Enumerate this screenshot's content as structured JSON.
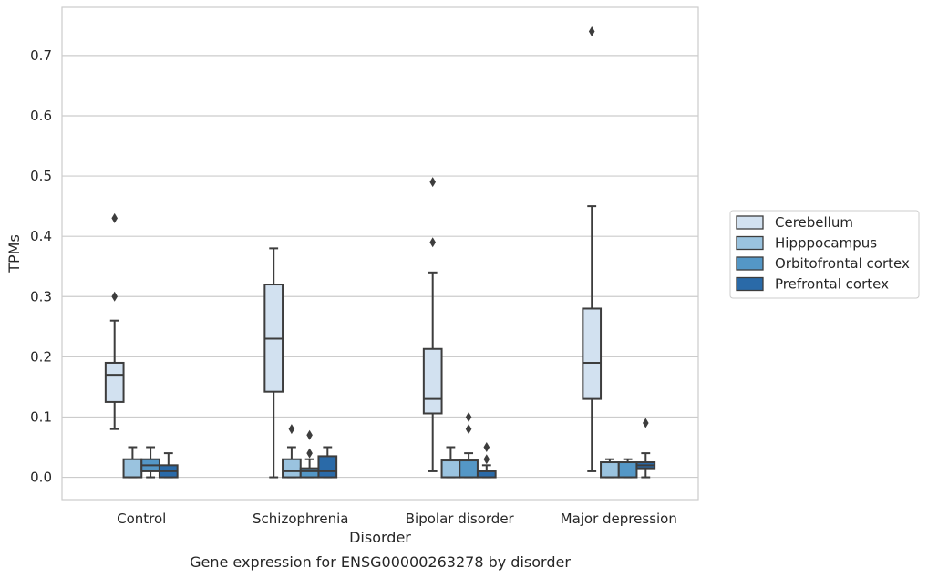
{
  "caption": "Gene expression for ENSG00000263278 by disorder",
  "chart_data": {
    "type": "boxplot",
    "xlabel": "Disorder",
    "ylabel": "TPMs",
    "ylim": [
      -0.037,
      0.78
    ],
    "yticks": [
      "0.0",
      "0.1",
      "0.2",
      "0.3",
      "0.4",
      "0.5",
      "0.6",
      "0.7"
    ],
    "grid": "horizontal",
    "legend_position": "right",
    "categories": [
      "Control",
      "Schizophrenia",
      "Bipolar disorder",
      "Major depression"
    ],
    "series": [
      {
        "name": "Cerebellum",
        "color": "#d2e1f0",
        "boxes": [
          {
            "whislo": 0.08,
            "q1": 0.125,
            "med": 0.17,
            "q3": 0.19,
            "whishi": 0.26,
            "fliers": [
              0.3,
              0.43
            ]
          },
          {
            "whislo": 0.0,
            "q1": 0.142,
            "med": 0.23,
            "q3": 0.32,
            "whishi": 0.38,
            "fliers": []
          },
          {
            "whislo": 0.01,
            "q1": 0.106,
            "med": 0.13,
            "q3": 0.213,
            "whishi": 0.34,
            "fliers": [
              0.39,
              0.49
            ]
          },
          {
            "whislo": 0.01,
            "q1": 0.13,
            "med": 0.19,
            "q3": 0.28,
            "whishi": 0.45,
            "fliers": [
              0.74
            ]
          }
        ]
      },
      {
        "name": "Hipppocampus",
        "color": "#9ac3df",
        "boxes": [
          {
            "whislo": 0.0,
            "q1": 0.0,
            "med": 0.0,
            "q3": 0.03,
            "whishi": 0.05,
            "fliers": []
          },
          {
            "whislo": 0.0,
            "q1": 0.0,
            "med": 0.01,
            "q3": 0.03,
            "whishi": 0.05,
            "fliers": [
              0.08
            ]
          },
          {
            "whislo": 0.0,
            "q1": 0.0,
            "med": 0.0,
            "q3": 0.028,
            "whishi": 0.05,
            "fliers": []
          },
          {
            "whislo": 0.0,
            "q1": 0.0,
            "med": 0.0,
            "q3": 0.025,
            "whishi": 0.03,
            "fliers": []
          }
        ]
      },
      {
        "name": "Orbitofrontal cortex",
        "color": "#5497c6",
        "boxes": [
          {
            "whislo": 0.0,
            "q1": 0.01,
            "med": 0.02,
            "q3": 0.03,
            "whishi": 0.05,
            "fliers": []
          },
          {
            "whislo": 0.0,
            "q1": 0.0,
            "med": 0.01,
            "q3": 0.015,
            "whishi": 0.03,
            "fliers": [
              0.04,
              0.07
            ]
          },
          {
            "whislo": 0.0,
            "q1": 0.0,
            "med": 0.0,
            "q3": 0.028,
            "whishi": 0.04,
            "fliers": [
              0.08,
              0.1
            ]
          },
          {
            "whislo": 0.0,
            "q1": 0.0,
            "med": 0.0,
            "q3": 0.025,
            "whishi": 0.03,
            "fliers": []
          }
        ]
      },
      {
        "name": "Prefrontal cortex",
        "color": "#2a6aa8",
        "boxes": [
          {
            "whislo": 0.0,
            "q1": 0.0,
            "med": 0.01,
            "q3": 0.02,
            "whishi": 0.04,
            "fliers": []
          },
          {
            "whislo": 0.0,
            "q1": 0.0,
            "med": 0.01,
            "q3": 0.035,
            "whishi": 0.05,
            "fliers": []
          },
          {
            "whislo": 0.0,
            "q1": 0.0,
            "med": 0.0,
            "q3": 0.01,
            "whishi": 0.02,
            "fliers": [
              0.03,
              0.05
            ]
          },
          {
            "whislo": 0.0,
            "q1": 0.015,
            "med": 0.02,
            "q3": 0.025,
            "whishi": 0.04,
            "fliers": [
              0.09
            ]
          }
        ]
      }
    ]
  }
}
